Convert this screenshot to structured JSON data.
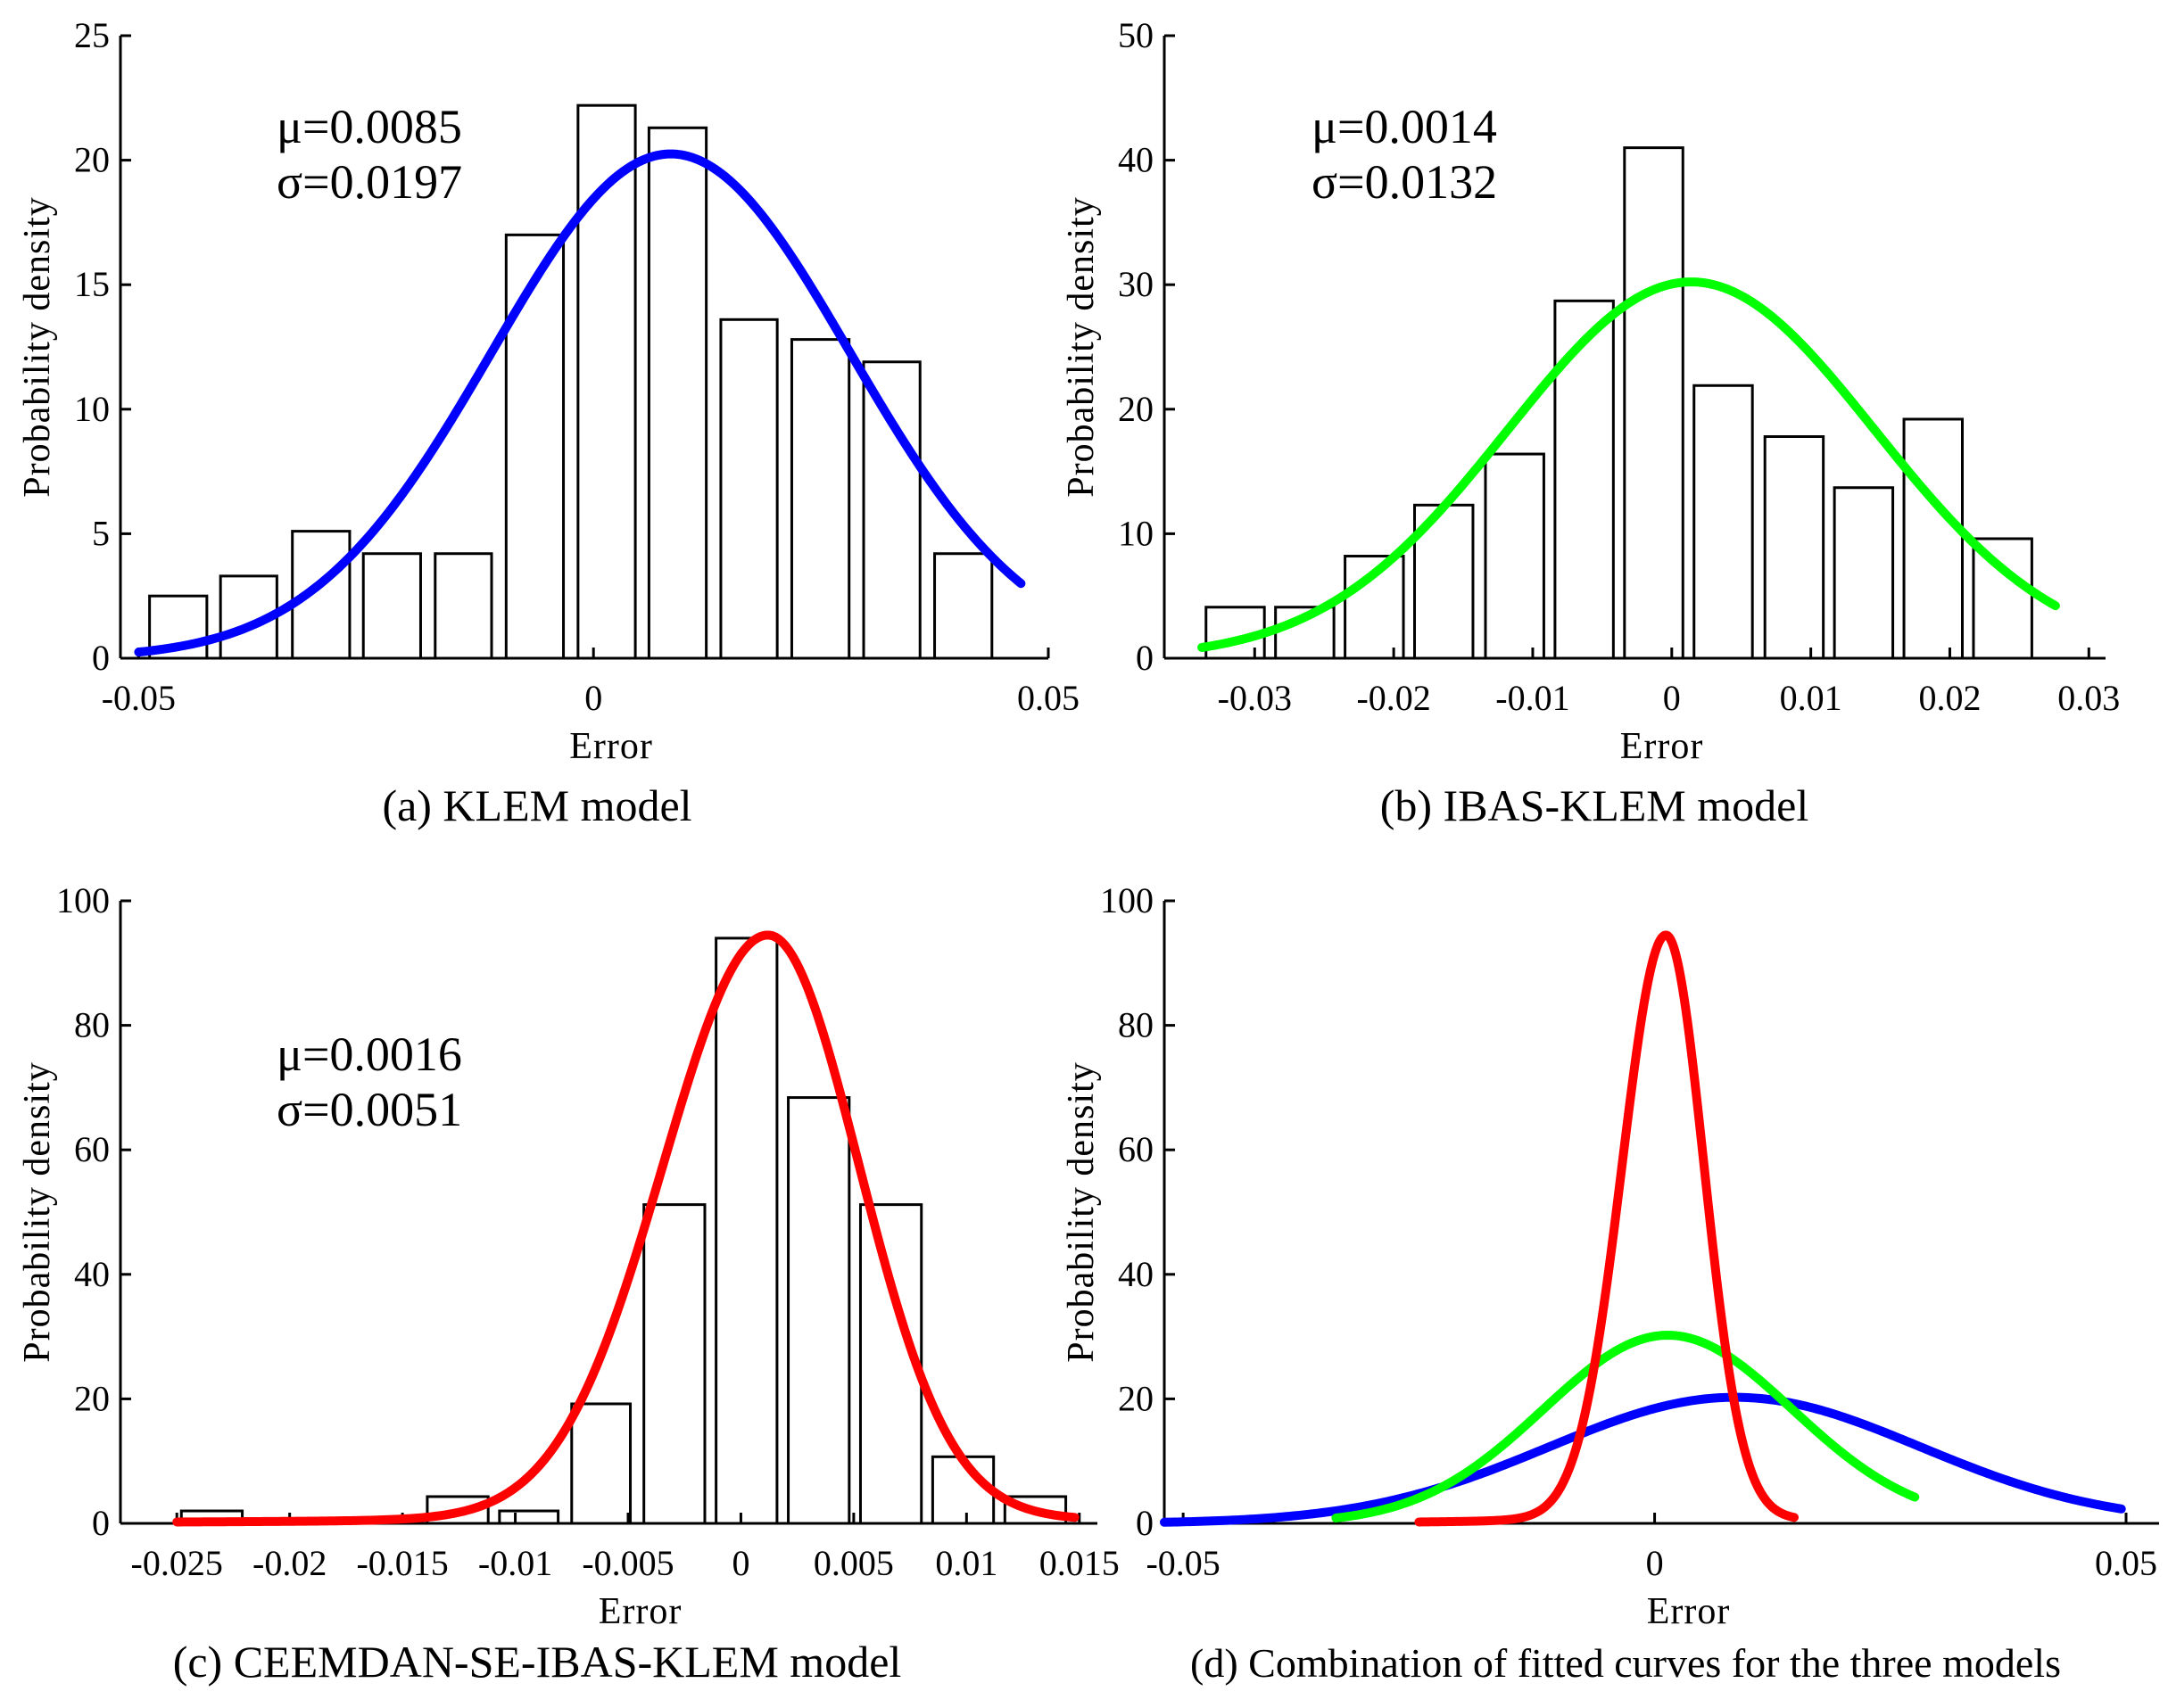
{
  "chart_data": [
    {
      "type": "bar",
      "id": "a",
      "caption": "(a) KLEM model",
      "xlabel": "Error",
      "ylabel": "Probability density",
      "xlim": [
        -0.052,
        0.05
      ],
      "ylim": [
        0,
        25
      ],
      "xticks": [
        -0.05,
        0,
        0.05
      ],
      "xtick_labels": [
        "-0.05",
        "0",
        "0.05"
      ],
      "yticks": [
        0,
        5,
        10,
        15,
        20,
        25
      ],
      "ytick_labels": [
        "0",
        "5",
        "10",
        "15",
        "20",
        "25"
      ],
      "stats": [
        "μ=0.0085",
        "σ=0.0197"
      ],
      "bins": [
        {
          "x0": -0.0488,
          "x1": -0.0425,
          "y": 2.5
        },
        {
          "x0": -0.041,
          "x1": -0.0348,
          "y": 3.3
        },
        {
          "x0": -0.0331,
          "x1": -0.0268,
          "y": 5.1
        },
        {
          "x0": -0.0253,
          "x1": -0.019,
          "y": 4.2
        },
        {
          "x0": -0.0174,
          "x1": -0.0112,
          "y": 4.2
        },
        {
          "x0": -0.0096,
          "x1": -0.0033,
          "y": 17.0
        },
        {
          "x0": -0.0017,
          "x1": 0.0046,
          "y": 22.2
        },
        {
          "x0": 0.0061,
          "x1": 0.0124,
          "y": 21.3
        },
        {
          "x0": 0.014,
          "x1": 0.0202,
          "y": 13.6
        },
        {
          "x0": 0.0218,
          "x1": 0.0281,
          "y": 12.8
        },
        {
          "x0": 0.0297,
          "x1": 0.0359,
          "y": 11.9
        },
        {
          "x0": 0.0375,
          "x1": 0.0438,
          "y": 4.2
        }
      ],
      "curves": [
        {
          "name": "KLEM fit",
          "color": "#0000ff",
          "mu": 0.0085,
          "sigma": 0.0197,
          "x_range": [
            -0.05,
            0.047
          ]
        }
      ]
    },
    {
      "type": "bar",
      "id": "b",
      "caption": "(b) IBAS-KLEM model",
      "xlabel": "Error",
      "ylabel": "Probability density",
      "xlim": [
        -0.0365,
        0.0312
      ],
      "ylim": [
        0,
        50
      ],
      "xticks": [
        -0.03,
        -0.02,
        -0.01,
        0,
        0.01,
        0.02,
        0.03
      ],
      "xtick_labels": [
        "-0.03",
        "-0.02",
        "-0.01",
        "0",
        "0.01",
        "0.02",
        "0.03"
      ],
      "yticks": [
        0,
        10,
        20,
        30,
        40,
        50
      ],
      "ytick_labels": [
        "0",
        "10",
        "20",
        "30",
        "40",
        "50"
      ],
      "stats": [
        "μ=0.0014",
        "σ=0.0132"
      ],
      "bins": [
        {
          "x0": -0.0335,
          "x1": -0.0293,
          "y": 4.1
        },
        {
          "x0": -0.0285,
          "x1": -0.0243,
          "y": 4.1
        },
        {
          "x0": -0.0235,
          "x1": -0.0193,
          "y": 8.2
        },
        {
          "x0": -0.0185,
          "x1": -0.0143,
          "y": 12.3
        },
        {
          "x0": -0.0134,
          "x1": -0.0092,
          "y": 16.4
        },
        {
          "x0": -0.0084,
          "x1": -0.0042,
          "y": 28.7
        },
        {
          "x0": -0.0034,
          "x1": 0.0008,
          "y": 41.0
        },
        {
          "x0": 0.0016,
          "x1": 0.0058,
          "y": 21.9
        },
        {
          "x0": 0.0067,
          "x1": 0.0109,
          "y": 17.8
        },
        {
          "x0": 0.0117,
          "x1": 0.0159,
          "y": 13.7
        },
        {
          "x0": 0.0167,
          "x1": 0.0209,
          "y": 19.2
        },
        {
          "x0": 0.0217,
          "x1": 0.0259,
          "y": 9.6
        }
      ],
      "curves": [
        {
          "name": "IBAS-KLEM fit",
          "color": "#00ff00",
          "mu": 0.0014,
          "sigma": 0.0132,
          "x_range": [
            -0.0338,
            0.0276
          ]
        }
      ]
    },
    {
      "type": "bar",
      "id": "c",
      "caption": "(c) CEEMDAN-SE-IBAS-KLEM model",
      "xlabel": "Error",
      "ylabel": "Probability density",
      "xlim": [
        -0.0275,
        0.0158
      ],
      "ylim": [
        0,
        100
      ],
      "xticks": [
        -0.025,
        -0.02,
        -0.015,
        -0.01,
        -0.005,
        0,
        0.005,
        0.01,
        0.015
      ],
      "xtick_labels": [
        "-0.025",
        "-0.02",
        "-0.015",
        "-0.01",
        "-0.005",
        "0",
        "0.005",
        "0.01",
        "0.015"
      ],
      "yticks": [
        0,
        20,
        40,
        60,
        80,
        100
      ],
      "ytick_labels": [
        "0",
        "20",
        "40",
        "60",
        "80",
        "100"
      ],
      "stats": [
        "μ=0.0016",
        "σ=0.0051"
      ],
      "bins": [
        {
          "x0": -0.0248,
          "x1": -0.0221,
          "y": 2.0
        },
        {
          "x0": -0.0139,
          "x1": -0.0112,
          "y": 4.3
        },
        {
          "x0": -0.0107,
          "x1": -0.0081,
          "y": 2.0
        },
        {
          "x0": -0.0075,
          "x1": -0.0049,
          "y": 19.2
        },
        {
          "x0": -0.0043,
          "x1": -0.0016,
          "y": 51.2
        },
        {
          "x0": -0.0011,
          "x1": 0.0016,
          "y": 94.0
        },
        {
          "x0": 0.0021,
          "x1": 0.0048,
          "y": 68.4
        },
        {
          "x0": 0.0053,
          "x1": 0.008,
          "y": 51.2
        },
        {
          "x0": 0.0085,
          "x1": 0.0112,
          "y": 10.7
        },
        {
          "x0": 0.0117,
          "x1": 0.0144,
          "y": 4.3
        }
      ],
      "curves": [
        {
          "name": "CEEMDAN-SE-IBAS-KLEM fit",
          "color": "#ff0000",
          "kind": "peaked",
          "x_range": [
            -0.025,
            0.0148
          ]
        }
      ]
    },
    {
      "type": "line",
      "id": "d",
      "caption": "(d) Combination of fitted curves for the three models",
      "xlabel": "Error",
      "ylabel": "Probability density",
      "xlim": [
        -0.052,
        0.0535
      ],
      "ylim": [
        0,
        100
      ],
      "xticks": [
        -0.05,
        0,
        0.05
      ],
      "xtick_labels": [
        "-0.05",
        "0",
        "0.05"
      ],
      "yticks": [
        0,
        20,
        40,
        60,
        80,
        100
      ],
      "ytick_labels": [
        "0",
        "20",
        "40",
        "60",
        "80",
        "100"
      ],
      "stats": [],
      "bins": [],
      "curves": [
        {
          "name": "KLEM fit",
          "color": "#0000ff",
          "mu": 0.0085,
          "sigma": 0.0197,
          "x_range": [
            -0.052,
            0.0495
          ]
        },
        {
          "name": "IBAS-KLEM fit",
          "color": "#00ff00",
          "mu": 0.0014,
          "sigma": 0.0132,
          "x_range": [
            -0.0338,
            0.0276
          ]
        },
        {
          "name": "CEEMDAN-SE-IBAS-KLEM fit",
          "color": "#ff0000",
          "kind": "peaked",
          "x_range": [
            -0.025,
            0.0148
          ]
        }
      ]
    }
  ]
}
